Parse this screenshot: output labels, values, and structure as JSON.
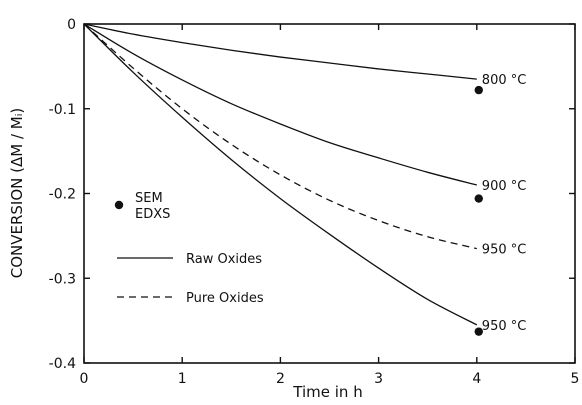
{
  "chart_data": {
    "type": "line",
    "xlabel": "Time in h",
    "ylabel": "CONVERSION (ΔM / Mᵢ)",
    "xlim": [
      0,
      5
    ],
    "ylim": [
      -0.4,
      0
    ],
    "xticks": [
      "0",
      "1",
      "2",
      "3",
      "4",
      "5"
    ],
    "yticks": [
      "0",
      "-0.1",
      "-0.2",
      "-0.3",
      "-0.4"
    ],
    "grid": false,
    "series": [
      {
        "name": "800 °C",
        "style": "solid",
        "x": [
          0,
          0.5,
          1,
          1.5,
          2,
          2.5,
          3,
          3.5,
          4
        ],
        "y": [
          0,
          -0.012,
          -0.022,
          -0.031,
          -0.039,
          -0.046,
          -0.053,
          -0.059,
          -0.065
        ]
      },
      {
        "name": "900 °C",
        "style": "solid",
        "x": [
          0,
          0.5,
          1,
          1.5,
          2,
          2.5,
          3,
          3.5,
          4
        ],
        "y": [
          0,
          -0.035,
          -0.066,
          -0.094,
          -0.118,
          -0.14,
          -0.158,
          -0.175,
          -0.19
        ]
      },
      {
        "name": "950 °C",
        "style": "dashed",
        "x": [
          0,
          0.5,
          1,
          1.5,
          2,
          2.5,
          3,
          3.5,
          4
        ],
        "y": [
          0,
          -0.052,
          -0.1,
          -0.142,
          -0.178,
          -0.208,
          -0.232,
          -0.251,
          -0.265
        ]
      },
      {
        "name": "950 °C",
        "style": "solid",
        "x": [
          0,
          0.5,
          1,
          1.5,
          2,
          2.5,
          3,
          3.5,
          4
        ],
        "y": [
          0,
          -0.057,
          -0.11,
          -0.16,
          -0.206,
          -0.248,
          -0.288,
          -0.325,
          -0.355
        ]
      }
    ],
    "sem_edxs_points": [
      {
        "x": 4.02,
        "y": -0.078
      },
      {
        "x": 4.02,
        "y": -0.206
      },
      {
        "x": 4.02,
        "y": -0.363
      }
    ],
    "legend": {
      "placement": "left-middle",
      "marker_label_1": "SEM",
      "marker_label_2": "EDXS",
      "solid_label": "Raw Oxides",
      "dashed_label": "Pure Oxides"
    }
  }
}
